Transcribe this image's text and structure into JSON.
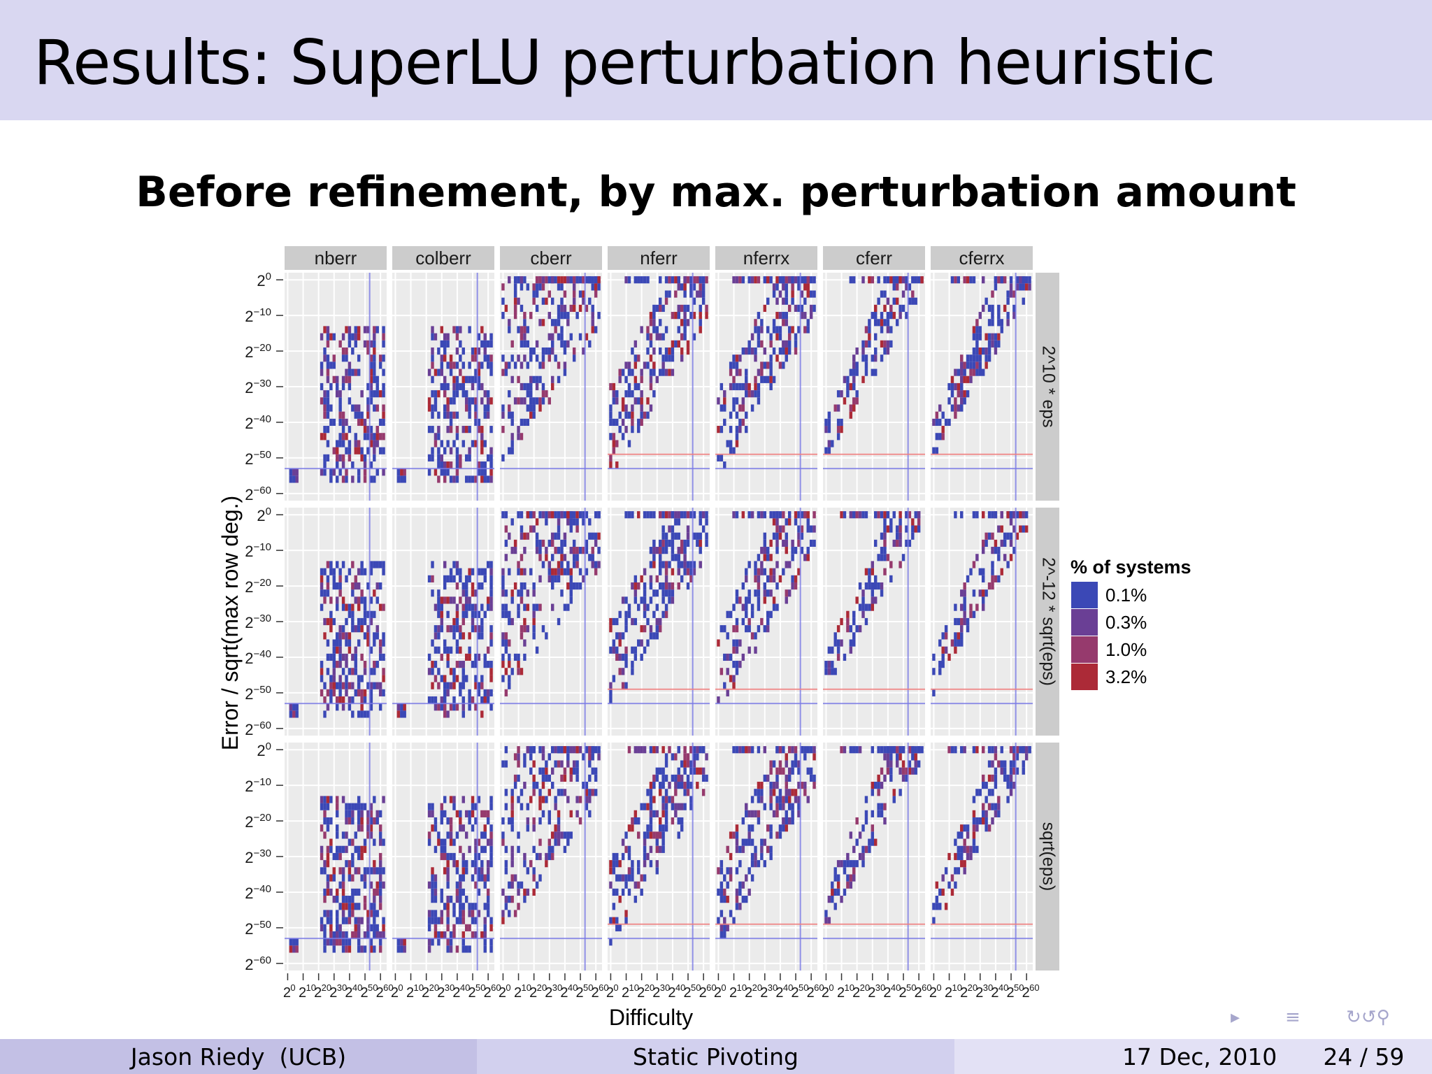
{
  "slide": {
    "title": "Results: SuperLU perturbation heuristic",
    "subtitle": "Before refinement, by max. perturbation amount"
  },
  "footer": {
    "author": "Jason Riedy  (UCB)",
    "talk": "Static Pivoting",
    "date": "17 Dec, 2010",
    "page": "24 / 59"
  },
  "nav_icons": [
    "nav-arrow-icon",
    "frame-align-icon",
    "search-zoom-icon"
  ],
  "chart_data": {
    "type": "heatmap",
    "xlabel": "Difficulty",
    "ylabel": "Error / sqrt(max row deg.)",
    "columns": [
      "nberr",
      "colberr",
      "cberr",
      "nferr",
      "nferrx",
      "cferr",
      "cferrx"
    ],
    "rows": [
      "2^10 * eps",
      "2^-12 * sqrt(eps)",
      "sqrt(eps)"
    ],
    "y_ticks_log2": [
      0,
      -10,
      -20,
      -30,
      -40,
      -50,
      -60
    ],
    "y_tick_labels": [
      "0",
      "−10",
      "−20",
      "−30",
      "−40",
      "−50",
      "−60"
    ],
    "ylim_log2": [
      -62,
      2
    ],
    "x_ticks_log2": [
      0,
      10,
      20,
      30,
      40,
      50,
      60
    ],
    "x_tick_labels": [
      "0",
      "10",
      "20",
      "30",
      "40",
      "50",
      "60"
    ],
    "xlim_log2": [
      -2,
      64
    ],
    "reference_lines": {
      "vertical_blue_log2": 53,
      "horizontal_blue_log2": -53,
      "horizontal_red_log2": -49,
      "red_line_panels": [
        "nferr",
        "nferrx",
        "cferr",
        "cferrx"
      ]
    },
    "legend": {
      "title": "% of systems",
      "position": "right",
      "entries": [
        {
          "label": "0.1%",
          "color": "#3b48b6"
        },
        {
          "label": "0.3%",
          "color": "#6a3f95"
        },
        {
          "label": "1.0%",
          "color": "#963a6d"
        },
        {
          "label": "3.2%",
          "color": "#ac2a37"
        }
      ]
    },
    "panel_background": "#ebebeb",
    "strip_color": "#cccccc"
  }
}
